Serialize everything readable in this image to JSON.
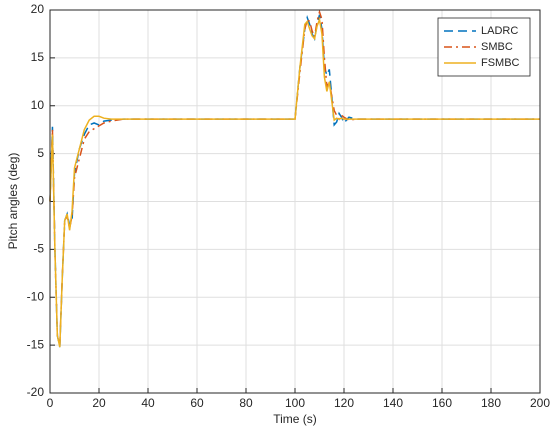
{
  "chart_data": {
    "type": "line",
    "xlabel": "Time (s)",
    "ylabel": "Pitch angles (deg)",
    "x": [
      0,
      1,
      2,
      3,
      4,
      5,
      6,
      7,
      8,
      9,
      10,
      12,
      14,
      16,
      18,
      20,
      22,
      25,
      30,
      40,
      100,
      102,
      104,
      105,
      106,
      107,
      108,
      109,
      110,
      111,
      112,
      113,
      114,
      115,
      116,
      117,
      118,
      119,
      120,
      122,
      125,
      130,
      200
    ],
    "series": [
      {
        "name": "LADRC",
        "color": "#0072bd",
        "style": "dashed",
        "values": [
          0,
          7.8,
          -5,
          -14,
          -15.2,
          -8,
          -2,
          -1.3,
          -2.5,
          -2,
          3,
          5.5,
          7,
          8,
          8.2,
          8,
          8.4,
          8.5,
          8.6,
          8.6,
          8.6,
          14,
          18,
          19.2,
          18.5,
          17.5,
          17,
          18.5,
          19.5,
          18,
          14,
          13.2,
          13.8,
          11,
          8,
          8.3,
          9.2,
          8.8,
          8.2,
          8.8,
          8.6,
          8.6,
          8.6
        ]
      },
      {
        "name": "SMBC",
        "color": "#d95319",
        "style": "dashdot",
        "values": [
          0,
          7.5,
          -5,
          -14,
          -15,
          -8,
          -2,
          -1.5,
          -2.8,
          -1.5,
          2.5,
          4.5,
          6.5,
          7.3,
          7.6,
          7.9,
          8.2,
          8.4,
          8.6,
          8.6,
          8.6,
          13.5,
          18,
          19,
          18.8,
          17.8,
          17.2,
          18.8,
          19.8,
          19,
          15,
          12,
          12.5,
          11,
          9.5,
          9,
          8.6,
          9,
          8.8,
          8.5,
          8.6,
          8.6,
          8.6
        ]
      },
      {
        "name": "FSMBC",
        "color": "#edb120",
        "style": "solid",
        "values": [
          0,
          7,
          -5,
          -14,
          -15.2,
          -8,
          -2,
          -1.3,
          -3,
          -1,
          3.5,
          5.5,
          7.5,
          8.5,
          8.9,
          8.9,
          8.7,
          8.6,
          8.6,
          8.6,
          8.6,
          14,
          18.5,
          18.8,
          18,
          17.3,
          17,
          18.3,
          19,
          17.5,
          13,
          11.5,
          12.5,
          10.5,
          8.5,
          8.7,
          8.6,
          8.7,
          8.6,
          8.6,
          8.6,
          8.6,
          8.6
        ]
      }
    ],
    "xlim": [
      0,
      200
    ],
    "xticks": [
      0,
      20,
      40,
      60,
      80,
      100,
      120,
      140,
      160,
      180,
      200
    ],
    "ylim": [
      -20,
      20
    ],
    "yticks": [
      -20,
      -15,
      -10,
      -5,
      0,
      5,
      10,
      15,
      20
    ],
    "grid": true,
    "legend": "northeast"
  }
}
